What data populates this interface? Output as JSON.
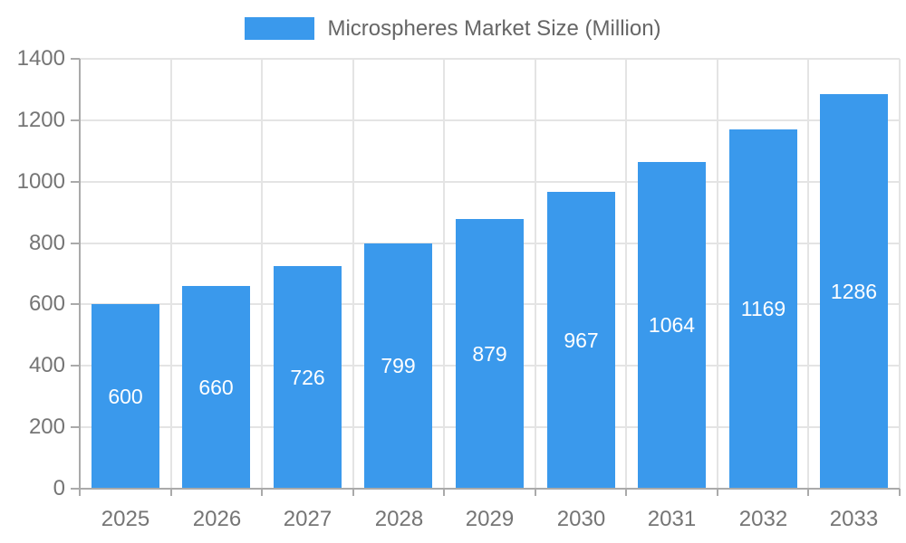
{
  "legend": {
    "label": "Microspheres Market Size (Million)"
  },
  "chart_data": {
    "type": "bar",
    "title": "Microspheres Market Size (Million)",
    "categories": [
      "2025",
      "2026",
      "2027",
      "2028",
      "2029",
      "2030",
      "2031",
      "2032",
      "2033"
    ],
    "values": [
      600,
      660,
      726,
      799,
      879,
      967,
      1064,
      1169,
      1286
    ],
    "xlabel": "",
    "ylabel": "",
    "ylim": [
      0,
      1400
    ],
    "yticks": [
      0,
      200,
      400,
      600,
      800,
      1000,
      1200,
      1400
    ],
    "grid": true,
    "legend_position": "top",
    "bar_labels_visible": true,
    "bar_label_position": "inside-center"
  },
  "colors": {
    "bar": "#3A99EC",
    "grid_line": "#e4e4e4",
    "axis_line": "#aaaaaa",
    "axis_text": "#757575",
    "legend_text": "#666666",
    "bar_label_text": "#ffffff",
    "background": "#ffffff"
  }
}
